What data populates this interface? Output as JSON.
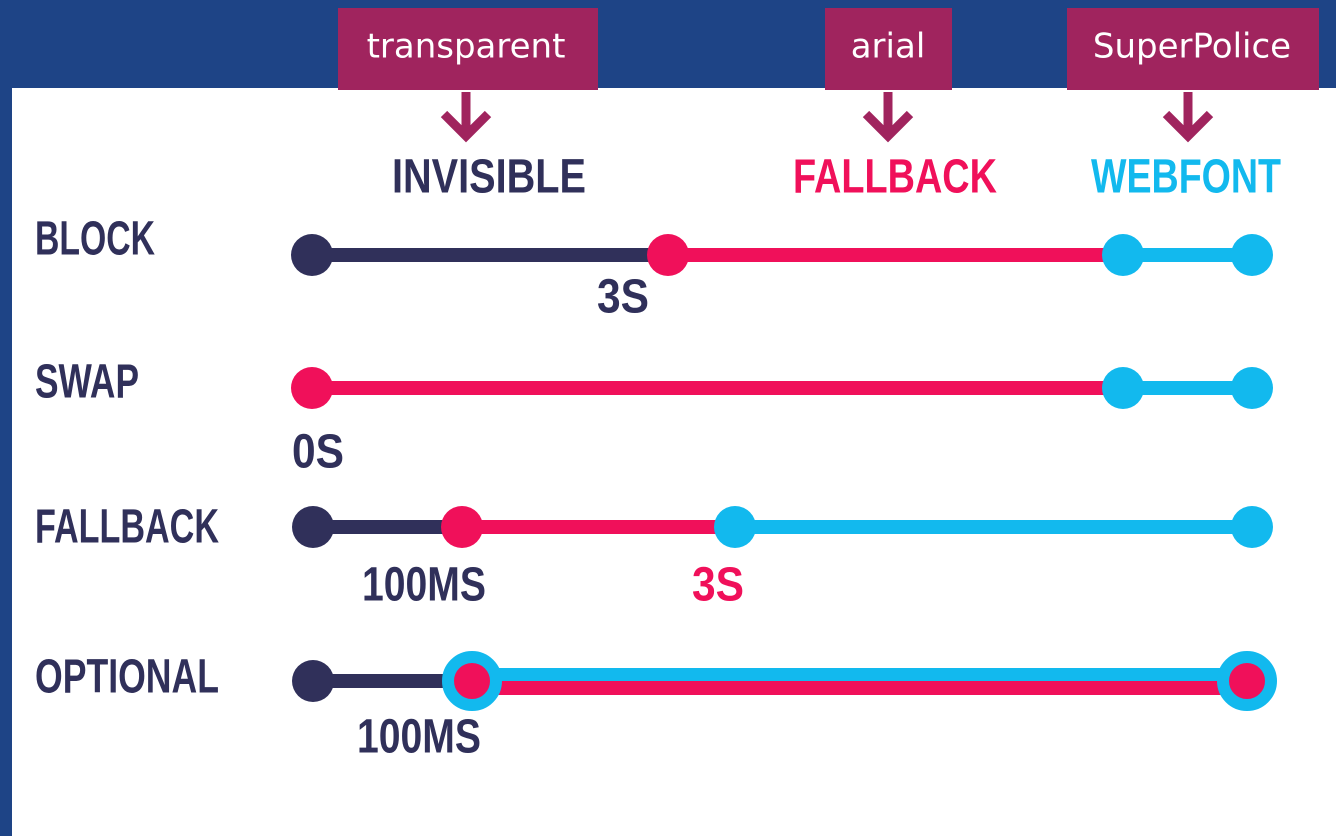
{
  "labels": [
    "transparent",
    "arial",
    "SuperPolice"
  ],
  "headers": [
    "INVISIBLE",
    "FALLBACK",
    "WEBFONT"
  ],
  "rows": [
    {
      "name": "BLOCK",
      "notes": [
        "3S"
      ]
    },
    {
      "name": "SWAP",
      "notes": [
        "0S"
      ]
    },
    {
      "name": "FALLBACK",
      "notes": [
        "100MS",
        "3S"
      ]
    },
    {
      "name": "OPTIONAL",
      "notes": [
        "100MS"
      ]
    }
  ]
}
